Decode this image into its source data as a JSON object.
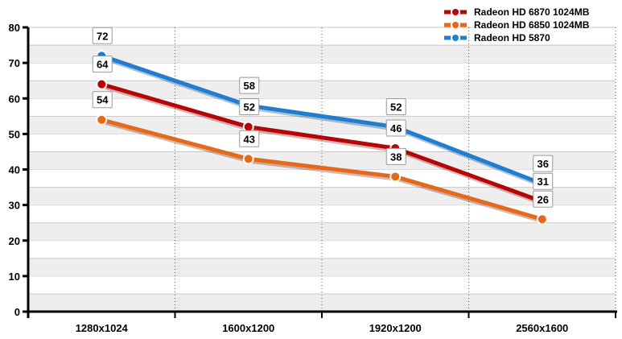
{
  "chart_data": {
    "type": "line",
    "title": "",
    "xlabel": "",
    "ylabel": "",
    "categories": [
      "1280x1024",
      "1600x1200",
      "1920x1200",
      "2560x1600"
    ],
    "ylim": [
      0,
      80
    ],
    "yticks": [
      0,
      10,
      20,
      30,
      40,
      50,
      60,
      70,
      80
    ],
    "grid": true,
    "legend_position": "top-right",
    "series": [
      {
        "name": "Radeon HD 6870 1024MB",
        "color": "#c00000",
        "values": [
          64,
          52,
          46,
          31
        ]
      },
      {
        "name": "Radeon HD 6850 1024MB",
        "color": "#ee6611",
        "values": [
          54,
          43,
          38,
          26
        ]
      },
      {
        "name": "Radeon HD 5870",
        "color": "#1a7fd8",
        "values": [
          72,
          58,
          52,
          36
        ]
      }
    ]
  }
}
